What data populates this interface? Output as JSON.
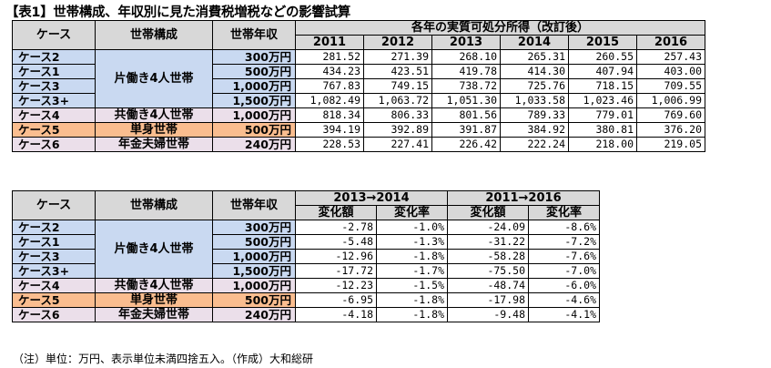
{
  "title": "【表1】世帯構成、年収別に見た消費税増税などの影響試算",
  "colors": {
    "blue": "#c9d9f1",
    "pink": "#ebdfea",
    "orange": "#fabd8f",
    "header": "#d8d8d8"
  },
  "table1": {
    "h_case": "ケース",
    "h_struct": "世帯構成",
    "h_income": "世帯年収",
    "h_group": "各年の実質可処分所得（改訂後）",
    "years": [
      "2011",
      "2012",
      "2013",
      "2014",
      "2015",
      "2016"
    ],
    "rows": [
      {
        "case": "ケース2",
        "income": "300万円",
        "values": [
          "281.52",
          "271.39",
          "268.10",
          "265.31",
          "260.55",
          "257.43"
        ]
      },
      {
        "case": "ケース1",
        "income": "500万円",
        "values": [
          "434.23",
          "423.51",
          "419.78",
          "414.30",
          "407.94",
          "403.00"
        ]
      },
      {
        "case": "ケース3",
        "income": "1,000万円",
        "values": [
          "767.83",
          "749.15",
          "738.72",
          "725.76",
          "718.15",
          "709.55"
        ]
      },
      {
        "case": "ケース3+",
        "income": "1,500万円",
        "values": [
          "1,082.49",
          "1,063.72",
          "1,051.30",
          "1,033.58",
          "1,023.46",
          "1,006.99"
        ]
      },
      {
        "case": "ケース4",
        "income": "1,000万円",
        "values": [
          "818.34",
          "806.33",
          "801.56",
          "789.33",
          "779.01",
          "769.60"
        ]
      },
      {
        "case": "ケース5",
        "income": "500万円",
        "values": [
          "394.19",
          "392.89",
          "391.87",
          "384.92",
          "380.81",
          "376.20"
        ]
      },
      {
        "case": "ケース6",
        "income": "240万円",
        "values": [
          "228.53",
          "227.41",
          "226.42",
          "222.24",
          "218.00",
          "219.05"
        ]
      }
    ],
    "groups": {
      "kata": "片働き4人世帯",
      "tomo": "共働き4人世帯",
      "tanshin": "単身世帯",
      "nenkin": "年金夫婦世帯"
    }
  },
  "table2": {
    "h_case": "ケース",
    "h_struct": "世帯構成",
    "h_income": "世帯年収",
    "period1": "2013→2014",
    "period2": "2011→2016",
    "sub": [
      "変化額",
      "変化率",
      "変化額",
      "変化率"
    ],
    "rows": [
      {
        "case": "ケース2",
        "income": "300万円",
        "values": [
          "-2.78",
          "-1.0%",
          "-24.09",
          "-8.6%"
        ]
      },
      {
        "case": "ケース1",
        "income": "500万円",
        "values": [
          "-5.48",
          "-1.3%",
          "-31.22",
          "-7.2%"
        ]
      },
      {
        "case": "ケース3",
        "income": "1,000万円",
        "values": [
          "-12.96",
          "-1.8%",
          "-58.28",
          "-7.6%"
        ]
      },
      {
        "case": "ケース3+",
        "income": "1,500万円",
        "values": [
          "-17.72",
          "-1.7%",
          "-75.50",
          "-7.0%"
        ]
      },
      {
        "case": "ケース4",
        "income": "1,000万円",
        "values": [
          "-12.23",
          "-1.5%",
          "-48.74",
          "-6.0%"
        ]
      },
      {
        "case": "ケース5",
        "income": "500万円",
        "values": [
          "-6.95",
          "-1.8%",
          "-17.98",
          "-4.6%"
        ]
      },
      {
        "case": "ケース6",
        "income": "240万円",
        "values": [
          "-4.18",
          "-1.8%",
          "-9.48",
          "-4.1%"
        ]
      }
    ],
    "groups": {
      "kata": "片働き4人世帯",
      "tomo": "共働き4人世帯",
      "tanshin": "単身世帯",
      "nenkin": "年金夫婦世帯"
    }
  },
  "note": "（注）単位：万円、表示単位未満四捨五入。（作成）大和総研"
}
